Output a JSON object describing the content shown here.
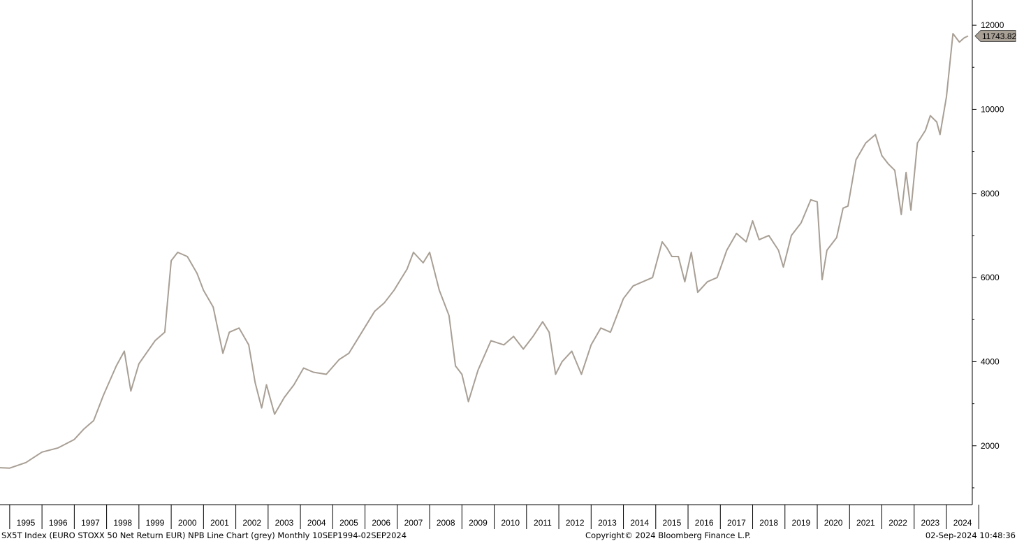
{
  "footer": {
    "left": "SX5T Index (EURO STOXX 50 Net Return EUR) NPB Line Chart (grey)  Monthly 10SEP1994-02SEP2024",
    "center": "Copyright© 2024 Bloomberg Finance L.P.",
    "right": "02-Sep-2024 10:48:36"
  },
  "chart_data": {
    "type": "line",
    "title": "",
    "xlabel": "",
    "ylabel": "",
    "series": [
      {
        "color": "#a89f95",
        "last_value_label": "11743.82",
        "x": [
          1994.7,
          1995.0,
          1995.5,
          1996.0,
          1996.5,
          1997.0,
          1997.3,
          1997.6,
          1997.9,
          1998.3,
          1998.55,
          1998.75,
          1999.0,
          1999.5,
          1999.8,
          2000.0,
          2000.2,
          2000.5,
          2000.8,
          2001.0,
          2001.3,
          2001.6,
          2001.8,
          2002.1,
          2002.4,
          2002.6,
          2002.8,
          2002.95,
          2003.2,
          2003.5,
          2003.8,
          2004.1,
          2004.4,
          2004.8,
          2005.2,
          2005.5,
          2005.9,
          2006.3,
          2006.6,
          2006.9,
          2007.1,
          2007.3,
          2007.5,
          2007.8,
          2008.0,
          2008.3,
          2008.6,
          2008.8,
          2009.0,
          2009.2,
          2009.5,
          2009.9,
          2010.3,
          2010.6,
          2010.9,
          2011.2,
          2011.5,
          2011.7,
          2011.9,
          2012.1,
          2012.4,
          2012.7,
          2013.0,
          2013.3,
          2013.6,
          2014.0,
          2014.3,
          2014.6,
          2014.9,
          2015.2,
          2015.35,
          2015.5,
          2015.7,
          2015.9,
          2016.1,
          2016.3,
          2016.6,
          2016.9,
          2017.2,
          2017.5,
          2017.8,
          2018.0,
          2018.2,
          2018.5,
          2018.8,
          2018.95,
          2019.2,
          2019.5,
          2019.8,
          2020.0,
          2020.15,
          2020.3,
          2020.6,
          2020.8,
          2020.95,
          2021.2,
          2021.5,
          2021.8,
          2022.0,
          2022.2,
          2022.4,
          2022.6,
          2022.75,
          2022.9,
          2023.1,
          2023.35,
          2023.5,
          2023.7,
          2023.8,
          2024.0,
          2024.2,
          2024.4,
          2024.55,
          2024.67
        ],
        "y": [
          1480,
          1470,
          1600,
          1850,
          1950,
          2150,
          2400,
          2600,
          3200,
          3900,
          4250,
          3300,
          3950,
          4500,
          4700,
          6400,
          6600,
          6500,
          6100,
          5700,
          5300,
          4200,
          4700,
          4800,
          4400,
          3500,
          2900,
          3450,
          2750,
          3150,
          3450,
          3850,
          3750,
          3700,
          4050,
          4200,
          4700,
          5200,
          5400,
          5700,
          5950,
          6200,
          6600,
          6350,
          6600,
          5700,
          5100,
          3900,
          3700,
          3050,
          3800,
          4500,
          4400,
          4600,
          4300,
          4600,
          4950,
          4700,
          3700,
          4000,
          4250,
          3700,
          4400,
          4800,
          4700,
          5500,
          5800,
          5900,
          6000,
          6850,
          6700,
          6500,
          6500,
          5900,
          6600,
          5650,
          5900,
          6000,
          6650,
          7050,
          6850,
          7350,
          6900,
          7000,
          6650,
          6250,
          7000,
          7300,
          7850,
          7800,
          5950,
          6650,
          6950,
          7650,
          7700,
          8800,
          9200,
          9400,
          8900,
          8700,
          8550,
          7500,
          8500,
          7600,
          9200,
          9500,
          9850,
          9700,
          9400,
          10300,
          11800,
          11600,
          11700,
          11743.82
        ]
      }
    ],
    "x_ticks": [
      "1995",
      "1996",
      "1997",
      "1998",
      "1999",
      "2000",
      "2001",
      "2002",
      "2003",
      "2004",
      "2005",
      "2006",
      "2007",
      "2008",
      "2009",
      "2010",
      "2011",
      "2012",
      "2013",
      "2014",
      "2015",
      "2016",
      "2017",
      "2018",
      "2019",
      "2020",
      "2021",
      "2022",
      "2023",
      "2024"
    ],
    "y_ticks": [
      2000,
      4000,
      6000,
      8000,
      10000,
      12000
    ],
    "xlim": [
      1994.7,
      2024.8
    ],
    "ylim": [
      600,
      12600
    ],
    "grid": false,
    "legend": "none",
    "y_axis_side": "right"
  }
}
